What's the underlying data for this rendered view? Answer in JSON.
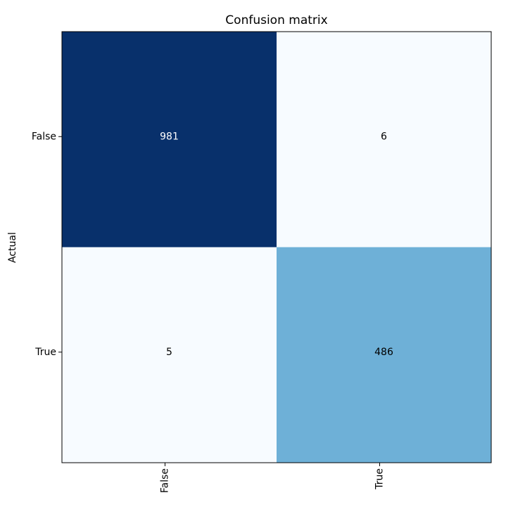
{
  "chart_data": {
    "type": "heatmap",
    "title": "Confusion matrix",
    "ylabel": "Actual",
    "x_categories": [
      "False",
      "True"
    ],
    "y_categories": [
      "False",
      "True"
    ],
    "values": [
      [
        981,
        6
      ],
      [
        5,
        486
      ]
    ],
    "colormap": "Blues"
  }
}
